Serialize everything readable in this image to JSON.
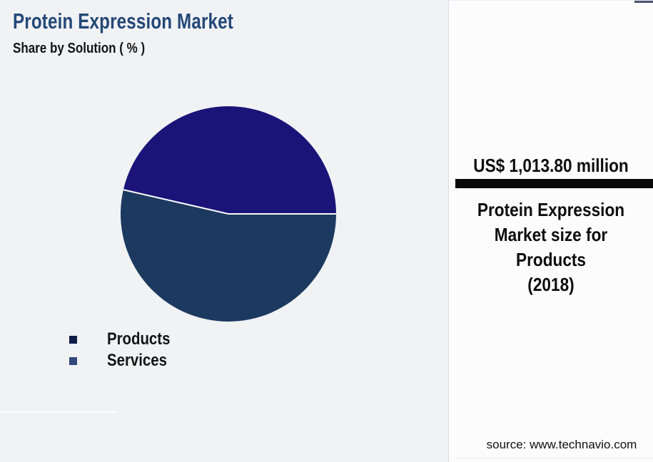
{
  "page": {
    "background": "#f1f2f4"
  },
  "header": {
    "title": "Protein Expression Market",
    "subtitle": "Share by Solution ( % )",
    "title_color": "#234878"
  },
  "chart_data": {
    "type": "pie",
    "title": "Protein Expression Market",
    "subtitle": "Share by Solution ( % )",
    "categories": [
      "Products",
      "Services"
    ],
    "values": [
      46.4,
      53.6
    ],
    "values_estimated_from_angles": true,
    "unit": "%",
    "slice_colors": [
      "#1a1478",
      "#1c3a60"
    ],
    "legend_marker_colors": [
      "#0e1d45",
      "#2e4a78"
    ],
    "separator_color": "#fafafa",
    "start_angle_deg": 0,
    "direction": "counterclockwise",
    "legend_position": "below-left",
    "grid": false
  },
  "panel": {
    "stat_value": "US$ 1,013.80 million",
    "stat_label_lines": [
      "Protein Expression",
      "Market size for",
      "Products",
      "(2018)"
    ],
    "divider_color": "#0a0a0b",
    "source": "source: www.technavio.com"
  }
}
